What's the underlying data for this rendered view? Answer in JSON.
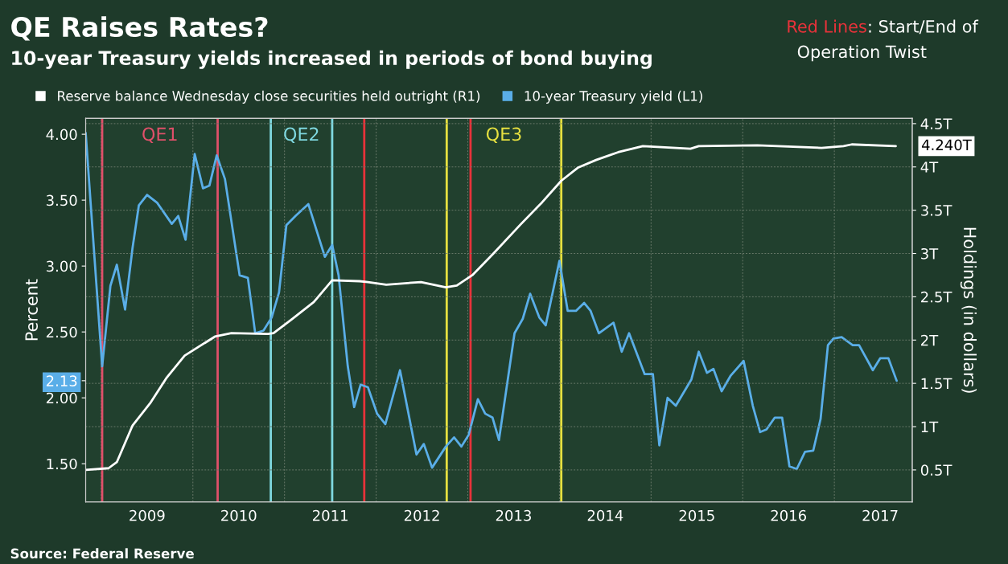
{
  "chart_data": {
    "type": "line",
    "title": "QE Raises Rates?",
    "subtitle": "10-year Treasury yields increased in periods of bond buying",
    "ylabel": "Percent",
    "y2label": "Holdings (in dollars)",
    "xlim": [
      2008.83,
      2017.85
    ],
    "ylim": [
      1.21,
      4.12
    ],
    "y2lim": [
      0.13,
      4.56
    ],
    "xticks": [
      {
        "value": 2009,
        "label": null
      },
      {
        "value": 2009.5,
        "label": "2009"
      },
      {
        "value": 2010,
        "label": null
      },
      {
        "value": 2010.5,
        "label": "2010"
      },
      {
        "value": 2011,
        "label": null
      },
      {
        "value": 2011.5,
        "label": "2011"
      },
      {
        "value": 2012,
        "label": null
      },
      {
        "value": 2012.5,
        "label": "2012"
      },
      {
        "value": 2013,
        "label": null
      },
      {
        "value": 2013.5,
        "label": "2013"
      },
      {
        "value": 2014,
        "label": null
      },
      {
        "value": 2014.5,
        "label": "2014"
      },
      {
        "value": 2015,
        "label": null
      },
      {
        "value": 2015.5,
        "label": "2015"
      },
      {
        "value": 2016,
        "label": null
      },
      {
        "value": 2016.5,
        "label": "2016"
      },
      {
        "value": 2017,
        "label": null
      },
      {
        "value": 2017.5,
        "label": "2017"
      }
    ],
    "yticks": [
      {
        "value": 1.5,
        "label": "1.50"
      },
      {
        "value": 2.0,
        "label": "2.00"
      },
      {
        "value": 2.13,
        "label": "2.13"
      },
      {
        "value": 2.5,
        "label": "2.50"
      },
      {
        "value": 3.0,
        "label": "3.00"
      },
      {
        "value": 3.5,
        "label": "3.50"
      },
      {
        "value": 4.0,
        "label": "4.00"
      }
    ],
    "y2ticks": [
      {
        "value": 0.5,
        "label": "0.5T"
      },
      {
        "value": 1,
        "label": "1T"
      },
      {
        "value": 1.5,
        "label": "1.5T"
      },
      {
        "value": 2,
        "label": "2T"
      },
      {
        "value": 2.5,
        "label": "2.5T"
      },
      {
        "value": 3,
        "label": "3T"
      },
      {
        "value": 3.5,
        "label": "3.5T"
      },
      {
        "value": 4,
        "label": "4T"
      },
      {
        "value": 4.5,
        "label": "4.5T"
      }
    ],
    "grid": true,
    "legend": "top left",
    "series": [
      {
        "name": "Reserve balance Wednesday close securities held outright (R1)",
        "color": "#ffffff",
        "axis": "y2",
        "x": [
          2008.83,
          2009.08,
          2009.17,
          2009.34,
          2009.54,
          2009.71,
          2009.91,
          2010.24,
          2010.42,
          2010.82,
          2010.88,
          2011.08,
          2011.32,
          2011.52,
          2011.82,
          2011.91,
          2012.11,
          2012.49,
          2012.76,
          2012.88,
          2013.05,
          2013.28,
          2013.58,
          2013.81,
          2014.02,
          2014.2,
          2014.4,
          2014.64,
          2014.91,
          2015.43,
          2015.52,
          2016.16,
          2016.86,
          2017.1,
          2017.19,
          2017.67
        ],
        "values": [
          0.5,
          0.52,
          0.59,
          1.01,
          1.28,
          1.56,
          1.82,
          2.04,
          2.08,
          2.07,
          2.08,
          2.24,
          2.44,
          2.69,
          2.68,
          2.67,
          2.64,
          2.67,
          2.61,
          2.63,
          2.75,
          3.0,
          3.34,
          3.59,
          3.84,
          3.99,
          4.08,
          4.17,
          4.24,
          4.21,
          4.24,
          4.25,
          4.22,
          4.24,
          4.26,
          4.24
        ],
        "value_labels": [
          null,
          null,
          null,
          null,
          null,
          null,
          null,
          null,
          null,
          null,
          null,
          null,
          null,
          null,
          null,
          null,
          null,
          null,
          null,
          null,
          null,
          null,
          null,
          null,
          null,
          null,
          null,
          null,
          null,
          null,
          null,
          null,
          null,
          null,
          null,
          "4.240T"
        ]
      },
      {
        "name": "10-year Treasury yield (L1)",
        "color": "#5aaee8",
        "axis": "y",
        "x": [
          2008.83,
          2009.01,
          2009.1,
          2009.17,
          2009.26,
          2009.34,
          2009.41,
          2009.5,
          2009.61,
          2009.77,
          2009.84,
          2009.92,
          2010.02,
          2010.11,
          2010.18,
          2010.26,
          2010.35,
          2010.51,
          2010.6,
          2010.68,
          2010.77,
          2010.86,
          2010.94,
          2011.02,
          2011.12,
          2011.26,
          2011.44,
          2011.52,
          2011.59,
          2011.69,
          2011.76,
          2011.83,
          2011.91,
          2012.01,
          2012.1,
          2012.26,
          2012.44,
          2012.52,
          2012.61,
          2012.76,
          2012.85,
          2012.93,
          2013.01,
          2013.11,
          2013.19,
          2013.27,
          2013.34,
          2013.51,
          2013.6,
          2013.68,
          2013.78,
          2013.85,
          2014.0,
          2014.09,
          2014.18,
          2014.27,
          2014.34,
          2014.43,
          2014.59,
          2014.68,
          2014.76,
          2014.93,
          2015.02,
          2015.09,
          2015.18,
          2015.27,
          2015.44,
          2015.52,
          2015.61,
          2015.68,
          2015.77,
          2015.87,
          2016.01,
          2016.11,
          2016.19,
          2016.26,
          2016.35,
          2016.43,
          2016.51,
          2016.59,
          2016.68,
          2016.77,
          2016.85,
          2016.93,
          2016.99,
          2017.08,
          2017.2,
          2017.27,
          2017.42,
          2017.5,
          2017.59,
          2017.68
        ],
        "values": [
          4.01,
          2.24,
          2.85,
          3.01,
          2.67,
          3.13,
          3.46,
          3.54,
          3.48,
          3.32,
          3.38,
          3.2,
          3.85,
          3.59,
          3.61,
          3.84,
          3.66,
          2.93,
          2.91,
          2.49,
          2.51,
          2.61,
          2.8,
          3.31,
          3.38,
          3.47,
          3.07,
          3.16,
          2.93,
          2.24,
          1.93,
          2.1,
          2.08,
          1.88,
          1.8,
          2.21,
          1.57,
          1.65,
          1.47,
          1.63,
          1.7,
          1.63,
          1.72,
          1.99,
          1.88,
          1.85,
          1.68,
          2.49,
          2.6,
          2.79,
          2.61,
          2.55,
          3.04,
          2.66,
          2.66,
          2.72,
          2.66,
          2.49,
          2.57,
          2.35,
          2.49,
          2.18,
          2.18,
          1.64,
          2.0,
          1.94,
          2.14,
          2.35,
          2.19,
          2.22,
          2.05,
          2.17,
          2.28,
          1.94,
          1.74,
          1.76,
          1.85,
          1.85,
          1.48,
          1.46,
          1.59,
          1.6,
          1.84,
          2.4,
          2.45,
          2.46,
          2.4,
          2.4,
          2.21,
          2.3,
          2.3,
          2.13
        ],
        "value_labels": [
          null,
          null,
          null,
          null,
          null,
          null,
          null,
          null,
          null,
          null,
          null,
          null,
          null,
          null,
          null,
          null,
          null,
          null,
          null,
          null,
          null,
          null,
          null,
          null,
          null,
          null,
          null,
          null,
          null,
          null,
          null,
          null,
          null,
          null,
          null,
          null,
          null,
          null,
          null,
          null,
          null,
          null,
          null,
          null,
          null,
          null,
          null,
          null,
          null,
          null,
          null,
          null,
          null,
          null,
          null,
          null,
          null,
          null,
          null,
          null,
          null,
          null,
          null,
          null,
          null,
          null,
          null,
          null,
          null,
          null,
          null,
          null,
          null,
          null,
          null,
          null,
          null,
          null,
          null,
          null,
          null,
          null,
          null,
          null,
          null,
          null,
          null,
          null,
          null,
          null,
          null,
          null
        ]
      }
    ],
    "ref_lines": [
      {
        "axis": "x",
        "value": 2009.01,
        "label": "QE1",
        "color": "#e0506a"
      },
      {
        "axis": "x",
        "value": 2010.27,
        "label": null,
        "color": "#e0506a"
      },
      {
        "axis": "x",
        "value": 2010.85,
        "label": "QE2",
        "color": "#7fd8e0"
      },
      {
        "axis": "x",
        "value": 2011.52,
        "label": null,
        "color": "#7fd8e0"
      },
      {
        "axis": "x",
        "value": 2011.87,
        "label": null,
        "color": "#e8323a"
      },
      {
        "axis": "x",
        "value": 2012.77,
        "label": "QE3",
        "color": "#e6e040"
      },
      {
        "axis": "x",
        "value": 2013.03,
        "label": null,
        "color": "#e8323a"
      },
      {
        "axis": "x",
        "value": 2014.02,
        "label": null,
        "color": "#e6e040"
      }
    ],
    "annotations": [
      "Red Lines: Start/End of\nOperation Twist",
      "Source: Federal Reserve"
    ]
  }
}
